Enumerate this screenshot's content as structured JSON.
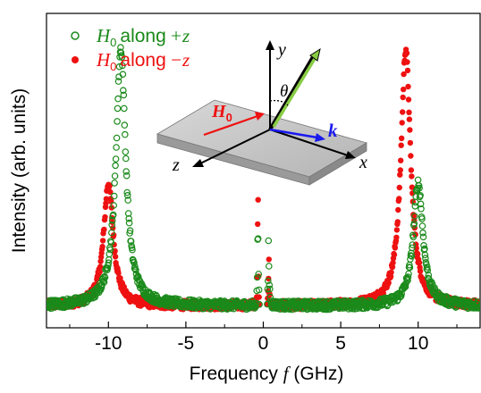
{
  "chart_data": {
    "type": "scatter",
    "xlabel_prefix": "Frequency",
    "xlabel_symbol": "f",
    "xlabel_unit": "(GHz)",
    "ylabel": "Intensity (arb. units)",
    "xlim": [
      -14,
      14
    ],
    "ylim": [
      0,
      1.15
    ],
    "x_ticks": [
      -10,
      -5,
      0,
      5,
      10
    ],
    "x_tick_labels": [
      "-10",
      "-5",
      "0",
      "5",
      "10"
    ],
    "legend_position": "top-left",
    "series": [
      {
        "name": "H0 along +z",
        "label_symbol": "H",
        "label_subscript": "0",
        "label_text": "along",
        "label_sign": "+z",
        "marker": "open-circle",
        "color": "#1a8a1a",
        "peaks": [
          {
            "center": -9.2,
            "height": 0.88,
            "width": 0.75
          },
          {
            "center": 10.0,
            "height": 0.42,
            "width": 0.75
          },
          {
            "center": -0.35,
            "height": 0.48,
            "width": 0.05
          },
          {
            "center": 0.35,
            "height": 0.48,
            "width": 0.05
          }
        ],
        "baseline": 0.02
      },
      {
        "name": "H0 along -z",
        "label_symbol": "H",
        "label_subscript": "0",
        "label_text": "along",
        "label_sign": "−z",
        "marker": "filled-circle",
        "color": "#ee1111",
        "peaks": [
          {
            "center": -10.0,
            "height": 0.42,
            "width": 0.75
          },
          {
            "center": 9.2,
            "height": 0.88,
            "width": 0.75
          },
          {
            "center": -0.35,
            "height": 0.48,
            "width": 0.05
          },
          {
            "center": 0.35,
            "height": 0.3,
            "width": 0.05
          }
        ],
        "baseline": 0.02
      }
    ]
  },
  "inset": {
    "field_label": "H",
    "field_subscript": "0",
    "wavevector_label": "k",
    "angle_label": "θ",
    "axis_x": "x",
    "axis_y": "y",
    "axis_z": "z",
    "field_color": "#ee1111",
    "wavevector_color": "#1a1aee",
    "magnetization_color": "#88cc44"
  }
}
